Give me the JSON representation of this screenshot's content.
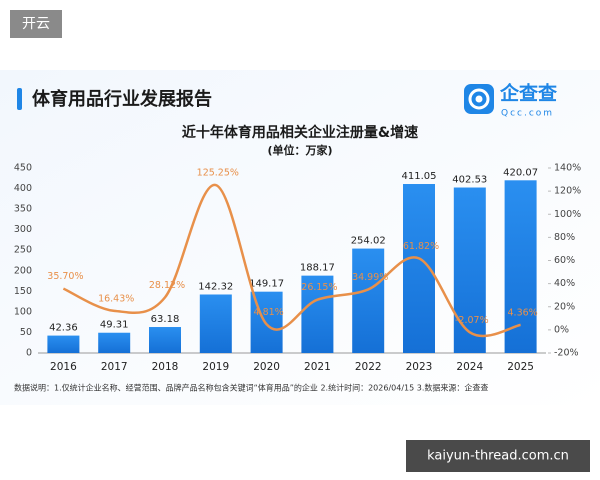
{
  "badge": "开云",
  "header": {
    "title": "体育用品行业发展报告",
    "logo_text": "企查查",
    "logo_url": "Qcc.com"
  },
  "chart_data": {
    "type": "bar",
    "title": "近十年体育用品相关企业注册量&增速",
    "subtitle": "(单位：万家)",
    "categories": [
      "2016",
      "2017",
      "2018",
      "2019",
      "2020",
      "2021",
      "2022",
      "2023",
      "2024",
      "2025"
    ],
    "series": [
      {
        "type": "bar",
        "color": "#1f86e6",
        "values": [
          42.36,
          49.31,
          63.18,
          142.32,
          149.17,
          188.17,
          254.02,
          411.05,
          402.53,
          420.07
        ]
      },
      {
        "type": "line",
        "axis": "y2",
        "color": "#e8904a",
        "values": [
          35.7,
          16.43,
          28.12,
          125.25,
          4.81,
          26.15,
          34.99,
          61.82,
          -2.07,
          4.36
        ],
        "value_labels": [
          "35.70%",
          "16.43%",
          "28.12%",
          "125.25%",
          "4.81%",
          "26.15%",
          "34.99%",
          "61.82%",
          "-2.07%",
          "4.36%"
        ]
      }
    ],
    "ylim": [
      0,
      450
    ],
    "yticks": [
      0,
      50,
      100,
      150,
      200,
      250,
      300,
      350,
      400,
      450
    ],
    "y2lim": [
      -20,
      140
    ],
    "y2ticks": [
      {
        "value": -20,
        "label": "-20%"
      },
      {
        "value": 0,
        "label": "0%"
      },
      {
        "value": 20,
        "label": "20%"
      },
      {
        "value": 40,
        "label": "40%"
      },
      {
        "value": 60,
        "label": "60%"
      },
      {
        "value": 80,
        "label": "80%"
      },
      {
        "value": 100,
        "label": "100%"
      },
      {
        "value": 120,
        "label": "120%"
      },
      {
        "value": 140,
        "label": "140%"
      }
    ],
    "grid": false
  },
  "footnote": "数据说明：1.仅统计企业名称、经营范围、品牌产品名称包含关键词“体育用品”的企业 2.统计时间：2026/04/15 3.数据来源：企查查",
  "watermark": "kaiyun-thread.com.cn"
}
